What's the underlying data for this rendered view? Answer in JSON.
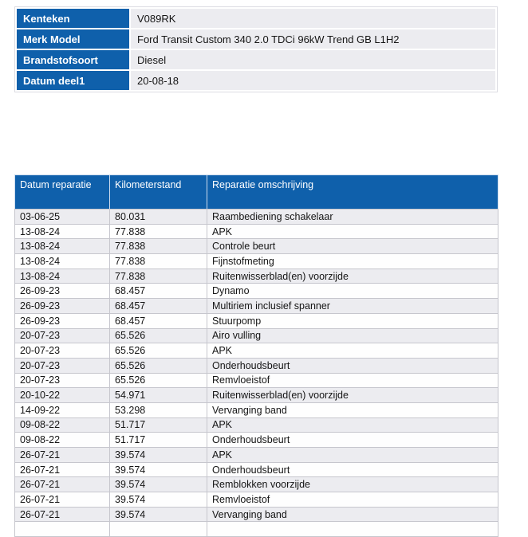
{
  "vehicle_info": {
    "rows": [
      {
        "label": "Kenteken",
        "value": "V089RK"
      },
      {
        "label": "Merk Model",
        "value": "Ford Transit Custom 340 2.0 TDCi 96kW Trend GB L1H2"
      },
      {
        "label": "Brandstofsoort",
        "value": "Diesel"
      },
      {
        "label": "Datum deel1",
        "value": "20-08-18"
      }
    ]
  },
  "repair_history": {
    "columns": [
      {
        "key": "datum-reparatie",
        "label": "Datum reparatie"
      },
      {
        "key": "kilometerstand",
        "label": "Kilometerstand"
      },
      {
        "key": "reparatie-omschrijving",
        "label": "Reparatie omschrijving"
      }
    ],
    "rows": [
      [
        "03-06-25",
        "80.031",
        "Raambediening schakelaar"
      ],
      [
        "13-08-24",
        "77.838",
        "APK"
      ],
      [
        "13-08-24",
        "77.838",
        "Controle beurt"
      ],
      [
        "13-08-24",
        "77.838",
        "Fijnstofmeting"
      ],
      [
        "13-08-24",
        "77.838",
        "Ruitenwisserblad(en) voorzijde"
      ],
      [
        "26-09-23",
        "68.457",
        "Dynamo"
      ],
      [
        "26-09-23",
        "68.457",
        "Multiriem inclusief spanner"
      ],
      [
        "26-09-23",
        "68.457",
        "Stuurpomp"
      ],
      [
        "20-07-23",
        "65.526",
        "Airo vulling"
      ],
      [
        "20-07-23",
        "65.526",
        "APK"
      ],
      [
        "20-07-23",
        "65.526",
        "Onderhoudsbeurt"
      ],
      [
        "20-07-23",
        "65.526",
        "Remvloeistof"
      ],
      [
        "20-10-22",
        "54.971",
        "Ruitenwisserblad(en) voorzijde"
      ],
      [
        "14-09-22",
        "53.298",
        "Vervanging band"
      ],
      [
        "09-08-22",
        "51.717",
        "APK"
      ],
      [
        "09-08-22",
        "51.717",
        "Onderhoudsbeurt"
      ],
      [
        "26-07-21",
        "39.574",
        "APK"
      ],
      [
        "26-07-21",
        "39.574",
        "Onderhoudsbeurt"
      ],
      [
        "26-07-21",
        "39.574",
        "Remblokken voorzijde"
      ],
      [
        "26-07-21",
        "39.574",
        "Remvloeistof"
      ],
      [
        "26-07-21",
        "39.574",
        "Vervanging band"
      ]
    ],
    "partial_row_at_bottom": true
  },
  "colors": {
    "header_blue": "#0F60AB",
    "row_alt_background": "#ECECF0",
    "row_background": "#FEFEFE",
    "grid_border": "#C6C6CD",
    "header_text": "#FFFFFF",
    "body_text": "#151515"
  }
}
